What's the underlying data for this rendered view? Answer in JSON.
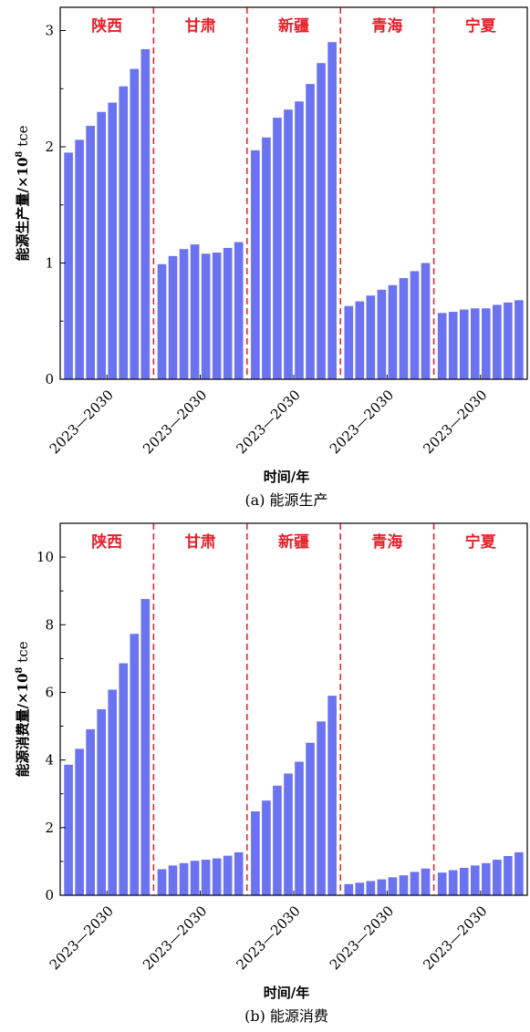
{
  "chart_data": [
    {
      "type": "bar",
      "caption": "(a) 能源生产",
      "ylabel_main": "能源生产量/×10",
      "ylabel_sup": "8",
      "ylabel_unit": " tce",
      "xlabel": "时间/年",
      "ylim": [
        0,
        3.2
      ],
      "yticks": [
        "0",
        "1",
        "2",
        "3"
      ],
      "years": [
        2023,
        2024,
        2025,
        2026,
        2027,
        2028,
        2029,
        2030
      ],
      "year_range_label": "2023—2030",
      "bar_color": "#6B73F0",
      "label_color": "#E8202A",
      "divider_color": "#E8202A",
      "groups": [
        {
          "name": "陕西",
          "values": [
            1.95,
            2.06,
            2.18,
            2.3,
            2.38,
            2.52,
            2.67,
            2.84
          ]
        },
        {
          "name": "甘肃",
          "values": [
            0.99,
            1.06,
            1.12,
            1.16,
            1.08,
            1.09,
            1.13,
            1.18
          ]
        },
        {
          "name": "新疆",
          "values": [
            1.97,
            2.08,
            2.25,
            2.32,
            2.39,
            2.54,
            2.72,
            2.9
          ]
        },
        {
          "name": "青海",
          "values": [
            0.63,
            0.67,
            0.72,
            0.77,
            0.81,
            0.87,
            0.93,
            1.0
          ]
        },
        {
          "name": "宁夏",
          "values": [
            0.57,
            0.58,
            0.6,
            0.61,
            0.61,
            0.64,
            0.66,
            0.68
          ]
        }
      ]
    },
    {
      "type": "bar",
      "caption": "(b) 能源消费",
      "ylabel_main": "能源消费量/×10",
      "ylabel_sup": "8",
      "ylabel_unit": " tce",
      "xlabel": "时间/年",
      "ylim": [
        0,
        11
      ],
      "yticks": [
        "0",
        "2",
        "4",
        "6",
        "8",
        "10"
      ],
      "years": [
        2023,
        2024,
        2025,
        2026,
        2027,
        2028,
        2029,
        2030
      ],
      "year_range_label": "2023—2030",
      "bar_color": "#6B73F0",
      "label_color": "#E8202A",
      "divider_color": "#E8202A",
      "groups": [
        {
          "name": "陕西",
          "values": [
            3.86,
            4.33,
            4.91,
            5.5,
            6.08,
            6.86,
            7.73,
            8.76
          ]
        },
        {
          "name": "甘肃",
          "values": [
            0.77,
            0.88,
            0.95,
            1.02,
            1.05,
            1.09,
            1.17,
            1.27
          ]
        },
        {
          "name": "新疆",
          "values": [
            2.48,
            2.8,
            3.24,
            3.6,
            3.95,
            4.51,
            5.14,
            5.9
          ]
        },
        {
          "name": "青海",
          "values": [
            0.33,
            0.37,
            0.42,
            0.47,
            0.53,
            0.59,
            0.69,
            0.79
          ]
        },
        {
          "name": "宁夏",
          "values": [
            0.67,
            0.74,
            0.81,
            0.88,
            0.95,
            1.05,
            1.16,
            1.27
          ]
        }
      ]
    }
  ]
}
